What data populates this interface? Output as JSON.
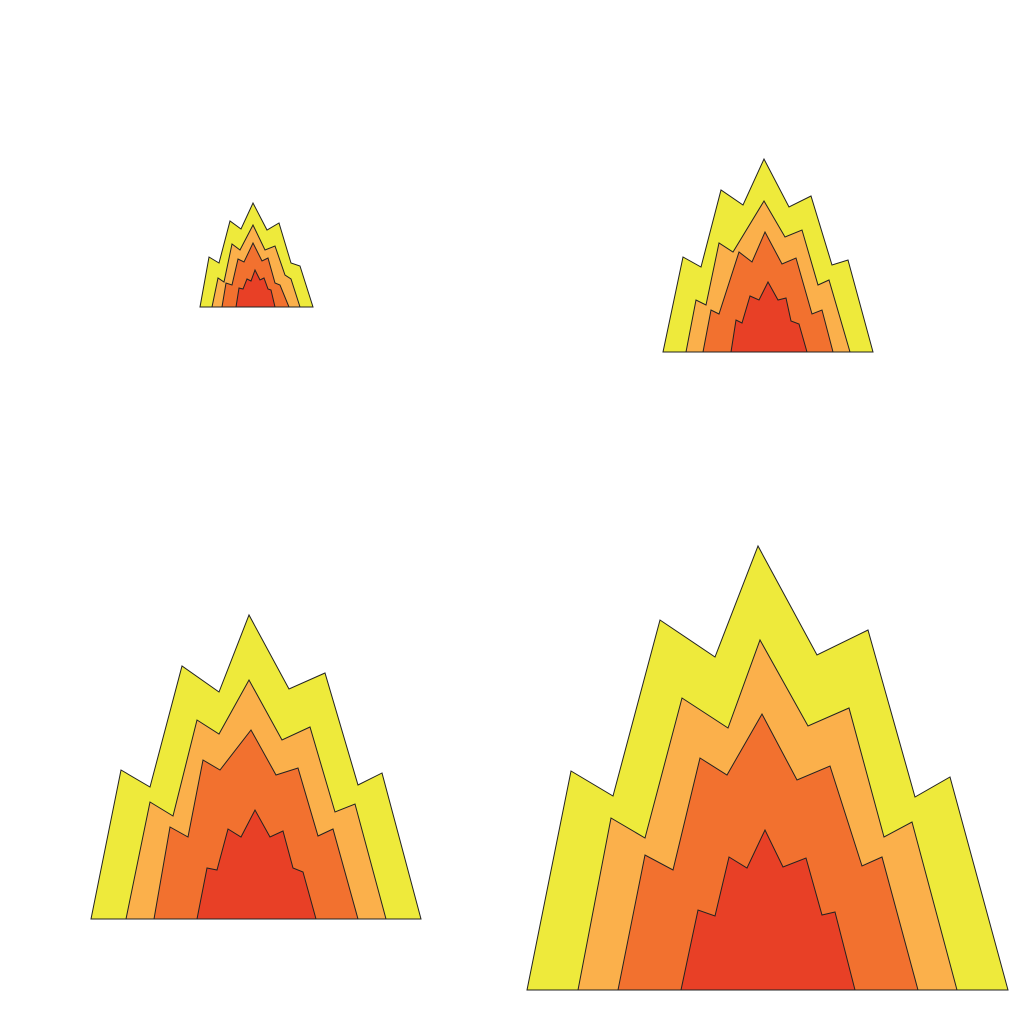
{
  "canvas": {
    "background": "#ffffff"
  },
  "palette": {
    "outer": "#eeea3b",
    "second": "#fbb04b",
    "third": "#f2712f",
    "core": "#e84026",
    "stroke": "#222222"
  },
  "flames": [
    {
      "name": "flame-small",
      "layers": 4
    },
    {
      "name": "flame-medium",
      "layers": 4
    },
    {
      "name": "flame-large",
      "layers": 4
    },
    {
      "name": "flame-extra-large",
      "layers": 4
    }
  ]
}
